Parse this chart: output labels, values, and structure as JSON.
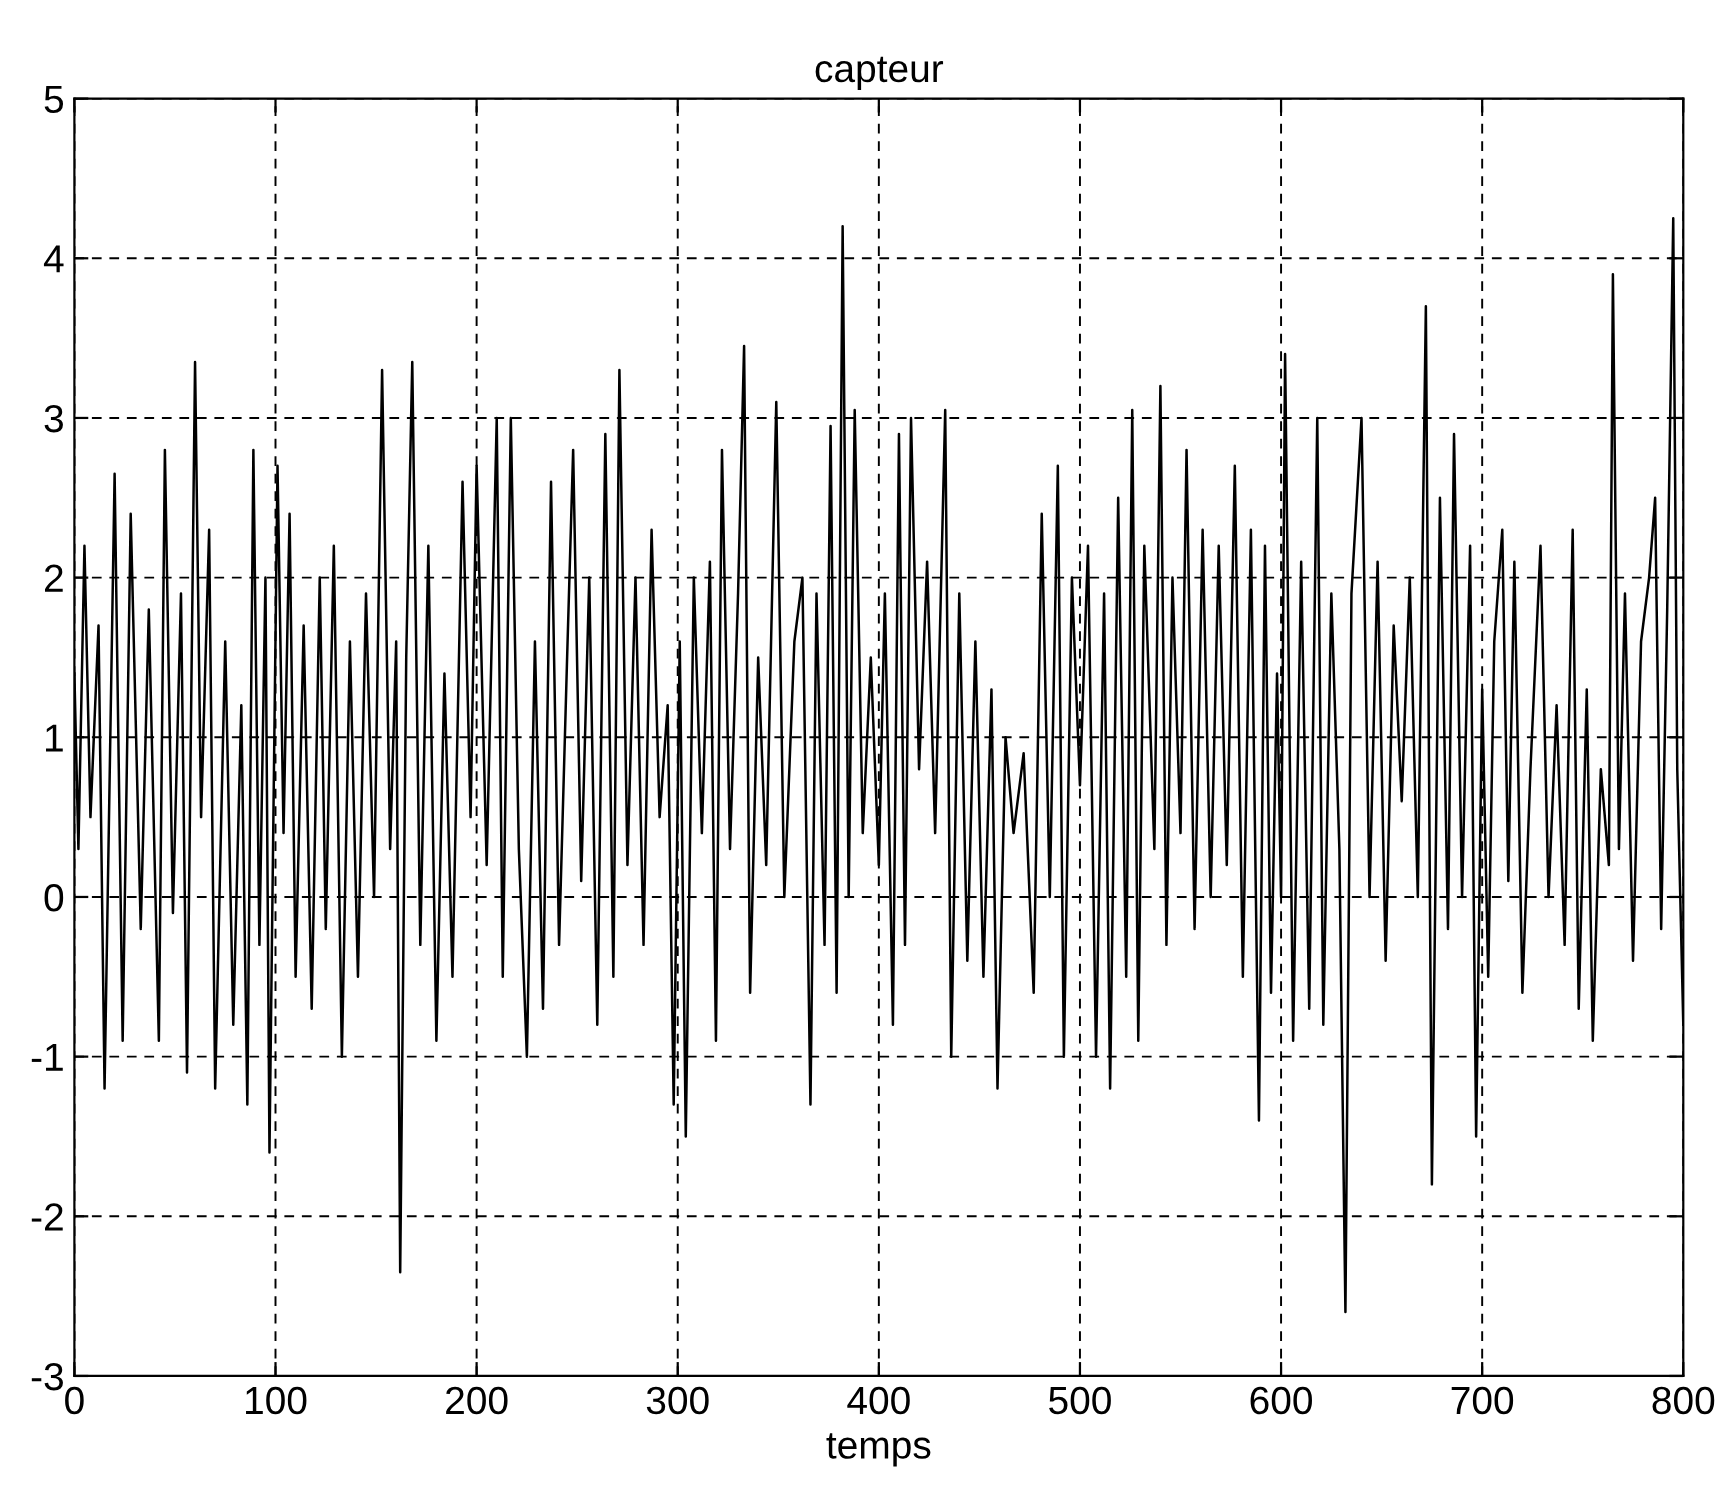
{
  "chart_data": {
    "type": "line",
    "title": "capteur",
    "xlabel": "temps",
    "xlim": [
      0,
      800
    ],
    "ylim": [
      -3,
      5
    ],
    "xticks": [
      0,
      100,
      200,
      300,
      400,
      500,
      600,
      700,
      800
    ],
    "yticks": [
      -3,
      -2,
      -1,
      0,
      1,
      2,
      3,
      4,
      5
    ],
    "grid": true,
    "line_style": "solid",
    "marker": "none",
    "series": [
      {
        "color": "#000000",
        "x": [
          0,
          2,
          5,
          8,
          12,
          15,
          20,
          24,
          28,
          33,
          37,
          42,
          45,
          49,
          53,
          56,
          60,
          63,
          67,
          70,
          75,
          79,
          83,
          86,
          89,
          92,
          95,
          97,
          101,
          104,
          107,
          110,
          114,
          118,
          122,
          125,
          129,
          133,
          137,
          141,
          145,
          149,
          153,
          157,
          160,
          162,
          165,
          168,
          172,
          176,
          180,
          184,
          188,
          193,
          197,
          200,
          205,
          210,
          213,
          217,
          221,
          225,
          229,
          233,
          237,
          241,
          245,
          248,
          252,
          256,
          260,
          264,
          268,
          271,
          275,
          279,
          283,
          287,
          291,
          295,
          298,
          301,
          304,
          308,
          312,
          316,
          319,
          322,
          326,
          330,
          333,
          336,
          340,
          344,
          349,
          353,
          358,
          362,
          366,
          369,
          373,
          376,
          379,
          382,
          385,
          388,
          392,
          396,
          400,
          403,
          407,
          410,
          413,
          416,
          420,
          424,
          428,
          433,
          436,
          440,
          444,
          448,
          452,
          456,
          459,
          463,
          467,
          472,
          477,
          481,
          485,
          489,
          492,
          496,
          500,
          504,
          508,
          512,
          515,
          519,
          523,
          526,
          529,
          532,
          537,
          540,
          543,
          546,
          550,
          553,
          557,
          561,
          565,
          569,
          573,
          577,
          581,
          585,
          589,
          592,
          595,
          598,
          600,
          602,
          606,
          610,
          614,
          618,
          621,
          625,
          629,
          632,
          635,
          640,
          644,
          648,
          652,
          656,
          660,
          664,
          668,
          672,
          675,
          679,
          683,
          686,
          690,
          694,
          697,
          700,
          703,
          706,
          710,
          713,
          716,
          720,
          724,
          729,
          733,
          737,
          741,
          745,
          748,
          752,
          755,
          759,
          763,
          765,
          768,
          771,
          775,
          779,
          783,
          786,
          789,
          792,
          795,
          797,
          800
        ],
        "values": [
          1.4,
          0.3,
          2.2,
          0.5,
          1.7,
          -1.2,
          2.65,
          -0.9,
          2.4,
          -0.2,
          1.8,
          -0.9,
          2.8,
          -0.1,
          1.9,
          -1.1,
          3.35,
          0.5,
          2.3,
          -1.2,
          1.6,
          -0.8,
          1.2,
          -1.3,
          2.8,
          -0.3,
          2.0,
          -1.6,
          2.7,
          0.4,
          2.4,
          -0.5,
          1.7,
          -0.7,
          2.0,
          -0.2,
          2.2,
          -1.0,
          1.6,
          -0.5,
          1.9,
          0.0,
          3.3,
          0.3,
          1.6,
          -2.35,
          1.5,
          3.35,
          -0.3,
          2.2,
          -0.9,
          1.4,
          -0.5,
          2.6,
          0.5,
          2.7,
          0.2,
          3.0,
          -0.5,
          3.0,
          0.3,
          -1.0,
          1.6,
          -0.7,
          2.6,
          -0.3,
          1.5,
          2.8,
          0.1,
          2.0,
          -0.8,
          2.9,
          -0.5,
          3.3,
          0.2,
          2.0,
          -0.3,
          2.3,
          0.5,
          1.2,
          -1.3,
          1.6,
          -1.5,
          2.0,
          0.4,
          2.1,
          -0.9,
          2.8,
          0.3,
          1.9,
          3.45,
          -0.6,
          1.5,
          0.2,
          3.1,
          0.0,
          1.6,
          2.0,
          -1.3,
          1.9,
          -0.3,
          2.95,
          -0.6,
          4.2,
          0.0,
          3.05,
          0.4,
          1.5,
          0.2,
          1.9,
          -0.8,
          2.9,
          -0.3,
          3.0,
          0.8,
          2.1,
          0.4,
          3.05,
          -1.0,
          1.9,
          -0.4,
          1.6,
          -0.5,
          1.3,
          -1.2,
          1.0,
          0.4,
          0.9,
          -0.6,
          2.4,
          0.0,
          2.7,
          -1.0,
          2.0,
          0.7,
          2.2,
          -1.0,
          1.9,
          -1.2,
          2.5,
          -0.5,
          3.05,
          -0.9,
          2.2,
          0.3,
          3.2,
          -0.3,
          2.0,
          0.4,
          2.8,
          -0.2,
          2.3,
          0.0,
          2.2,
          0.2,
          2.7,
          -0.5,
          2.3,
          -1.4,
          2.2,
          -0.6,
          1.4,
          0.0,
          3.4,
          -0.9,
          2.1,
          -0.7,
          3.0,
          -0.8,
          1.9,
          0.3,
          -2.6,
          1.9,
          3.0,
          0.0,
          2.1,
          -0.4,
          1.7,
          0.6,
          2.0,
          0.0,
          3.7,
          -1.8,
          2.5,
          -0.2,
          2.9,
          0.0,
          2.2,
          -1.5,
          1.3,
          -0.5,
          1.6,
          2.3,
          0.1,
          2.1,
          -0.6,
          0.8,
          2.2,
          0.0,
          1.2,
          -0.3,
          2.3,
          -0.7,
          1.3,
          -0.9,
          0.8,
          0.2,
          3.9,
          0.3,
          1.9,
          -0.4,
          1.6,
          2.0,
          2.5,
          -0.2,
          1.8,
          4.25,
          0.8,
          -0.8
        ]
      }
    ]
  }
}
